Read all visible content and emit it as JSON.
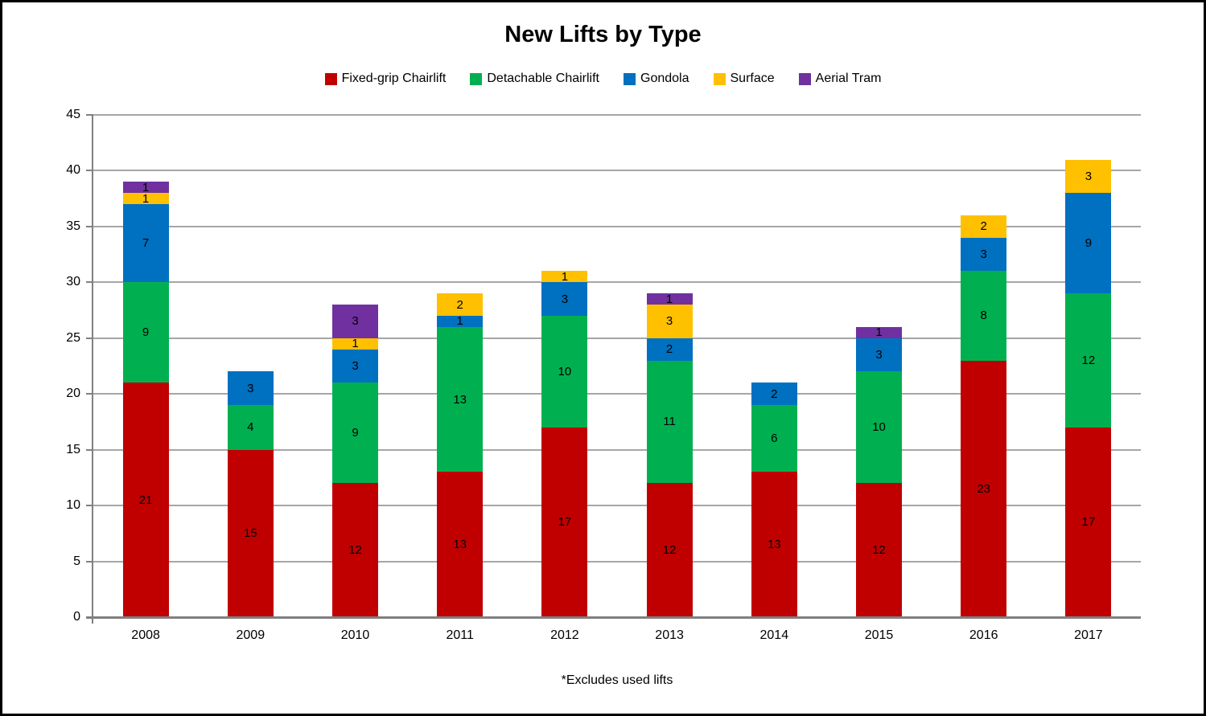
{
  "title": "New Lifts by Type",
  "footnote": "*Excludes used lifts",
  "chart_data": {
    "type": "bar",
    "stacked": true,
    "title": "New Lifts by Type",
    "xlabel": "",
    "ylabel": "",
    "annotation": "*Excludes used lifts",
    "categories": [
      "2008",
      "2009",
      "2010",
      "2011",
      "2012",
      "2013",
      "2014",
      "2015",
      "2016",
      "2017"
    ],
    "series": [
      {
        "name": "Fixed-grip Chairlift",
        "color": "#C00000",
        "values": [
          21,
          15,
          12,
          13,
          17,
          12,
          13,
          12,
          23,
          17
        ]
      },
      {
        "name": "Detachable Chairlift",
        "color": "#00B050",
        "values": [
          9,
          4,
          9,
          13,
          10,
          11,
          6,
          10,
          8,
          12
        ]
      },
      {
        "name": "Gondola",
        "color": "#0070C0",
        "values": [
          7,
          3,
          3,
          1,
          3,
          2,
          2,
          3,
          3,
          9
        ]
      },
      {
        "name": "Surface",
        "color": "#FFC000",
        "values": [
          1,
          0,
          1,
          2,
          1,
          3,
          0,
          0,
          2,
          3
        ]
      },
      {
        "name": "Aerial Tram",
        "color": "#7030A0",
        "values": [
          1,
          0,
          3,
          0,
          0,
          1,
          0,
          1,
          0,
          0
        ]
      }
    ],
    "totals": [
      39,
      22,
      28,
      29,
      31,
      29,
      21,
      26,
      36,
      41
    ],
    "ylim": [
      0,
      45
    ],
    "ytick_step": 5,
    "yticks": [
      0,
      5,
      10,
      15,
      20,
      25,
      30,
      35,
      40,
      45
    ],
    "grid": true,
    "data_labels": true,
    "legend_position": "top",
    "grid_color": "#A6A6A6",
    "axis_color": "#808080",
    "label_color": "#000000"
  }
}
